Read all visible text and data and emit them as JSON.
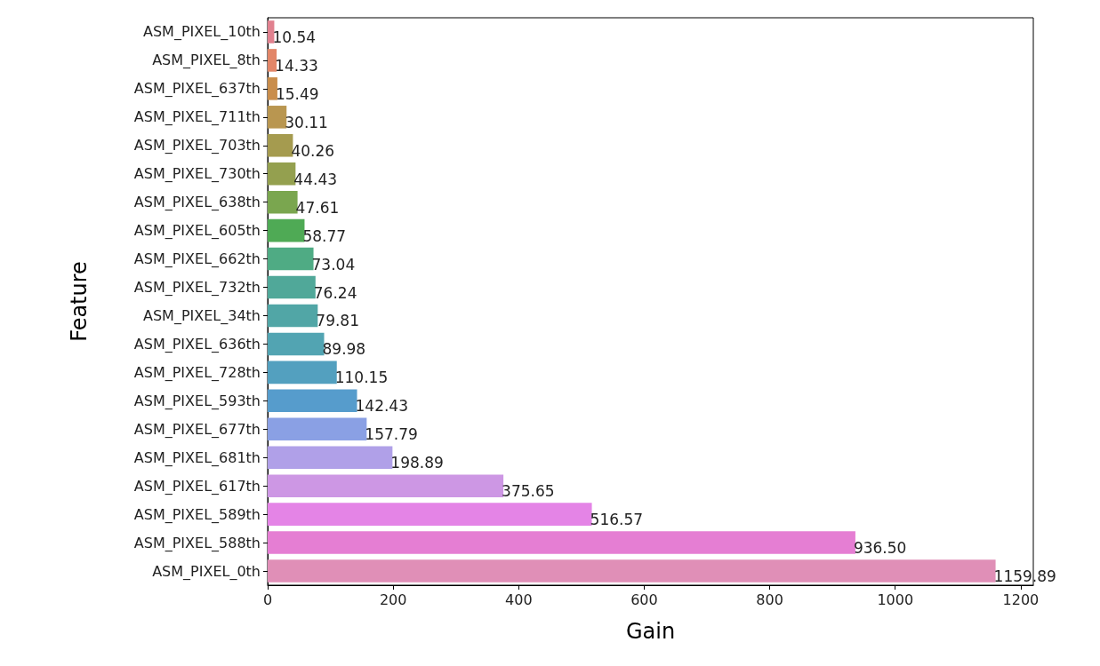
{
  "chart_data": {
    "type": "bar",
    "orientation": "horizontal",
    "xlabel": "Gain",
    "ylabel": "Feature",
    "categories": [
      "ASM_PIXEL_10th",
      "ASM_PIXEL_8th",
      "ASM_PIXEL_637th",
      "ASM_PIXEL_711th",
      "ASM_PIXEL_703th",
      "ASM_PIXEL_730th",
      "ASM_PIXEL_638th",
      "ASM_PIXEL_605th",
      "ASM_PIXEL_662th",
      "ASM_PIXEL_732th",
      "ASM_PIXEL_34th",
      "ASM_PIXEL_636th",
      "ASM_PIXEL_728th",
      "ASM_PIXEL_593th",
      "ASM_PIXEL_677th",
      "ASM_PIXEL_681th",
      "ASM_PIXEL_617th",
      "ASM_PIXEL_589th",
      "ASM_PIXEL_588th",
      "ASM_PIXEL_0th"
    ],
    "values": [
      10.54,
      14.33,
      15.49,
      30.11,
      40.26,
      44.43,
      47.61,
      58.77,
      73.04,
      76.24,
      79.81,
      89.98,
      110.15,
      142.43,
      157.79,
      198.89,
      375.65,
      516.57,
      936.5,
      1159.89
    ],
    "value_labels": [
      "10.54",
      "14.33",
      "15.49",
      "30.11",
      "40.26",
      "44.43",
      "47.61",
      "58.77",
      "73.04",
      "76.24",
      "79.81",
      "89.98",
      "110.15",
      "142.43",
      "157.79",
      "198.89",
      "375.65",
      "516.57",
      "936.50",
      "1159.89"
    ],
    "colors": [
      "#e1818f",
      "#e28668",
      "#c98d4b",
      "#b99650",
      "#a59b4f",
      "#94a04f",
      "#7aa64f",
      "#4faa55",
      "#4fab84",
      "#50a899",
      "#51a6a6",
      "#52a4b2",
      "#53a0bf",
      "#569ccc",
      "#8aa0e4",
      "#b0a0e8",
      "#cd97e4",
      "#e484e6",
      "#e57ed3",
      "#e08fb7"
    ],
    "xlim": [
      0,
      1220
    ],
    "xticks": [
      0,
      200,
      400,
      600,
      800,
      1000,
      1200
    ],
    "grid": false
  }
}
